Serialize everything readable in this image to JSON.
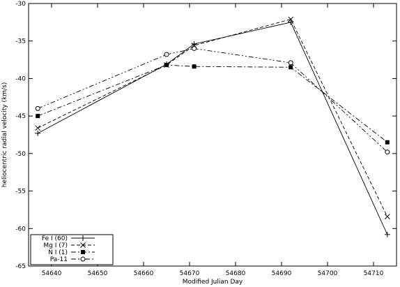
{
  "chart_data": {
    "type": "line",
    "title": "",
    "xlabel": "Modified Julian Day",
    "ylabel": "heliocentric radial velocity (km/s)",
    "xlim": [
      54635,
      54715
    ],
    "ylim": [
      -65,
      -30
    ],
    "xticks": [
      54640,
      54650,
      54660,
      54670,
      54680,
      54690,
      54700,
      54710
    ],
    "yticks": [
      -65,
      -60,
      -55,
      -50,
      -45,
      -40,
      -35,
      -30
    ],
    "grid": false,
    "legend_position": "bottom-left",
    "series": [
      {
        "name": "Fe I (60)",
        "marker": "plus",
        "dash": "",
        "points": [
          [
            54637,
            -47.3
          ],
          [
            54665,
            -38.1
          ],
          [
            54671,
            -35.4
          ],
          [
            54692,
            -32.5
          ],
          [
            54713,
            -60.8
          ]
        ]
      },
      {
        "name": "Mg I (7)",
        "marker": "cross",
        "dash": "5,3",
        "points": [
          [
            54637,
            -46.6
          ],
          [
            54665,
            -38.2
          ],
          [
            54671,
            -35.6
          ],
          [
            54692,
            -32.1
          ],
          [
            54713,
            -58.4
          ]
        ]
      },
      {
        "name": "N I (1)",
        "marker": "square",
        "dash": "7,3,2,3",
        "points": [
          [
            54637,
            -45.0
          ],
          [
            54665,
            -38.2
          ],
          [
            54671,
            -38.4
          ],
          [
            54692,
            -38.5
          ],
          [
            54713,
            -48.5
          ]
        ]
      },
      {
        "name": "Pa-11",
        "marker": "circle",
        "dash": "7,3,2,3,2,3",
        "points": [
          [
            54637,
            -44.0
          ],
          [
            54665,
            -36.8
          ],
          [
            54671,
            -36.0
          ],
          [
            54692,
            -37.9
          ],
          [
            54713,
            -49.8
          ]
        ]
      }
    ]
  }
}
